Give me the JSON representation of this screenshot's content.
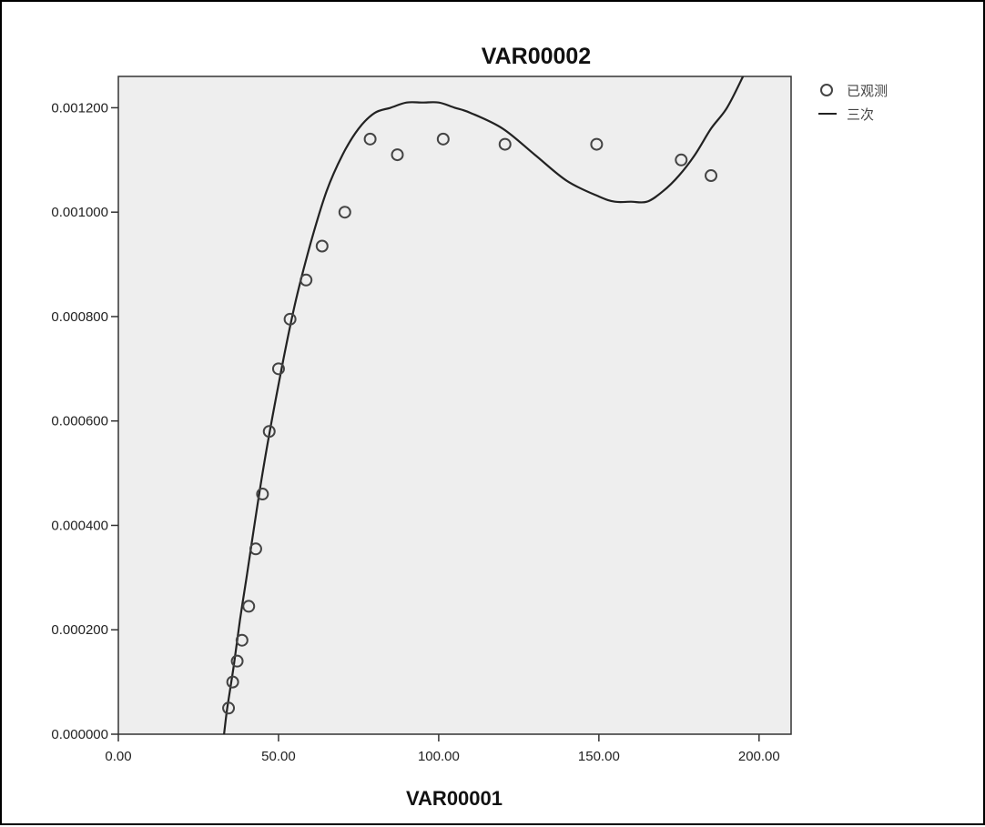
{
  "chart_data": {
    "type": "scatter",
    "title": "VAR00002",
    "xlabel": "VAR00001",
    "ylabel": "",
    "xlim": [
      0,
      210
    ],
    "ylim": [
      0,
      0.00126
    ],
    "x_ticks": [
      0,
      50,
      100,
      150,
      200
    ],
    "x_tick_labels": [
      "0.00",
      "50.00",
      "100.00",
      "150.00",
      "200.00"
    ],
    "y_ticks": [
      0,
      0.0002,
      0.0004,
      0.0006,
      0.0008,
      0.001,
      0.0012
    ],
    "y_tick_labels": [
      "0.000000",
      "0.000200",
      "0.000400",
      "0.000600",
      "0.000800",
      "0.001000",
      "0.001200"
    ],
    "grid": false,
    "legend_position": "top-right, outside plot",
    "series": [
      {
        "name": "已观测",
        "kind": "markers",
        "marker": "open-circle",
        "x": [
          34.4,
          35.7,
          37.1,
          38.6,
          40.7,
          42.9,
          45.0,
          47.1,
          50.0,
          53.6,
          58.6,
          63.6,
          70.7,
          78.6,
          87.1,
          101.4,
          120.7,
          149.3,
          175.7,
          185.0
        ],
        "y": [
          5e-05,
          0.0001,
          0.00014,
          0.00018,
          0.000245,
          0.000355,
          0.00046,
          0.00058,
          0.0007,
          0.000795,
          0.00087,
          0.000935,
          0.001,
          0.00114,
          0.00111,
          0.00114,
          0.00113,
          0.00113,
          0.0011,
          0.00107
        ]
      },
      {
        "name": "三次",
        "kind": "line",
        "curve_type": "cubic fit",
        "x": [
          33,
          34,
          36,
          38,
          40,
          45,
          50,
          55,
          60,
          65,
          70,
          75,
          80,
          85,
          90,
          95,
          100,
          105,
          110,
          120,
          130,
          140,
          150,
          155,
          160,
          165,
          170,
          175,
          180,
          185,
          190,
          195
        ],
        "y": [
          0.0,
          5e-05,
          0.00013,
          0.00022,
          0.0003,
          0.0005,
          0.00067,
          0.00082,
          0.00094,
          0.00104,
          0.00111,
          0.00116,
          0.00119,
          0.0012,
          0.00121,
          0.00121,
          0.00121,
          0.0012,
          0.00119,
          0.00116,
          0.00111,
          0.00106,
          0.00103,
          0.00102,
          0.00102,
          0.00102,
          0.00104,
          0.00107,
          0.00111,
          0.00116,
          0.0012,
          0.00126
        ]
      }
    ],
    "colors": {
      "plot_background": "#eeeeee",
      "axes": "#333333",
      "markers": "#444444",
      "line": "#222222"
    }
  }
}
